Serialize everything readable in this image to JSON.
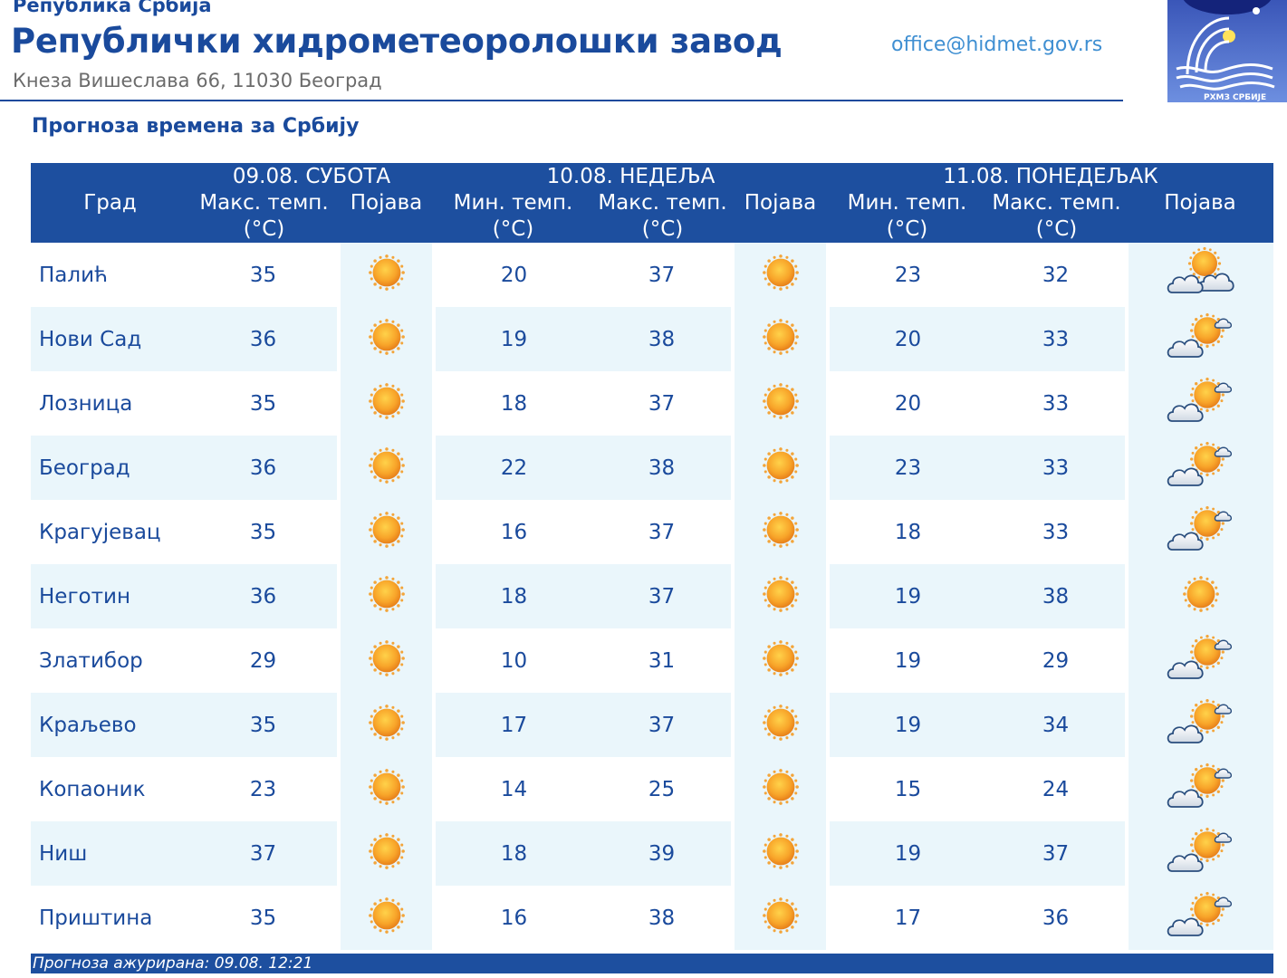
{
  "header": {
    "republika": "Република Србија",
    "institute": "Републички хидрометеоролошки завод",
    "address": "Кнеза Вишеслава 66, 11030  Београд",
    "email": "office@hidmet.gov.rs",
    "logo_icon": "rhmz-logo-icon",
    "logo_text": "РХМЗ СРБИЈЕ"
  },
  "title": "Прогноза времена за Србију",
  "table": {
    "days": [
      "09.08. СУБОТА",
      "10.08. НЕДЕЉА",
      "11.08. ПОНЕДЕЉАК"
    ],
    "columns": {
      "city": "Град",
      "max1": "Макс. темп.",
      "unit": "(°C)",
      "icon": "Појава",
      "min": "Мин. темп.",
      "max": "Макс. темп."
    },
    "rows": [
      {
        "city": "Палић",
        "d1_max": "35",
        "d1_icon": "sun-icon",
        "d2_min": "20",
        "d2_max": "37",
        "d2_icon": "sun-icon",
        "d3_min": "23",
        "d3_max": "32",
        "d3_icon": "partly-cloudy-icon"
      },
      {
        "city": "Нови Сад",
        "d1_max": "36",
        "d1_icon": "sun-icon",
        "d2_min": "19",
        "d2_max": "38",
        "d2_icon": "sun-icon",
        "d3_min": "20",
        "d3_max": "33",
        "d3_icon": "sun-behind-cloud-icon"
      },
      {
        "city": "Лозница",
        "d1_max": "35",
        "d1_icon": "sun-icon",
        "d2_min": "18",
        "d2_max": "37",
        "d2_icon": "sun-icon",
        "d3_min": "20",
        "d3_max": "33",
        "d3_icon": "sun-behind-cloud-icon"
      },
      {
        "city": "Београд",
        "d1_max": "36",
        "d1_icon": "sun-icon",
        "d2_min": "22",
        "d2_max": "38",
        "d2_icon": "sun-icon",
        "d3_min": "23",
        "d3_max": "33",
        "d3_icon": "sun-behind-cloud-icon"
      },
      {
        "city": "Крагујевац",
        "d1_max": "35",
        "d1_icon": "sun-icon",
        "d2_min": "16",
        "d2_max": "37",
        "d2_icon": "sun-icon",
        "d3_min": "18",
        "d3_max": "33",
        "d3_icon": "sun-behind-cloud-icon"
      },
      {
        "city": "Неготин",
        "d1_max": "36",
        "d1_icon": "sun-icon",
        "d2_min": "18",
        "d2_max": "37",
        "d2_icon": "sun-icon",
        "d3_min": "19",
        "d3_max": "38",
        "d3_icon": "sun-icon"
      },
      {
        "city": "Златибор",
        "d1_max": "29",
        "d1_icon": "sun-icon",
        "d2_min": "10",
        "d2_max": "31",
        "d2_icon": "sun-icon",
        "d3_min": "19",
        "d3_max": "29",
        "d3_icon": "sun-behind-cloud-icon"
      },
      {
        "city": "Краљево",
        "d1_max": "35",
        "d1_icon": "sun-icon",
        "d2_min": "17",
        "d2_max": "37",
        "d2_icon": "sun-icon",
        "d3_min": "19",
        "d3_max": "34",
        "d3_icon": "sun-behind-cloud-icon"
      },
      {
        "city": "Копаоник",
        "d1_max": "23",
        "d1_icon": "sun-icon",
        "d2_min": "14",
        "d2_max": "25",
        "d2_icon": "sun-icon",
        "d3_min": "15",
        "d3_max": "24",
        "d3_icon": "sun-behind-cloud-icon"
      },
      {
        "city": "Ниш",
        "d1_max": "37",
        "d1_icon": "sun-icon",
        "d2_min": "18",
        "d2_max": "39",
        "d2_icon": "sun-icon",
        "d3_min": "19",
        "d3_max": "37",
        "d3_icon": "sun-behind-cloud-icon"
      },
      {
        "city": "Приштина",
        "d1_max": "35",
        "d1_icon": "sun-icon",
        "d2_min": "16",
        "d2_max": "38",
        "d2_icon": "sun-icon",
        "d3_min": "17",
        "d3_max": "36",
        "d3_icon": "sun-behind-cloud-icon"
      }
    ]
  },
  "footer": "Прогноза ажурирана:  09.08.  12:21",
  "colors": {
    "primary": "#1d4f9f",
    "text": "#1a4a9c",
    "email": "#3f8fd2",
    "row_alt": "#eaf6fb",
    "sun": "#f59a23"
  }
}
